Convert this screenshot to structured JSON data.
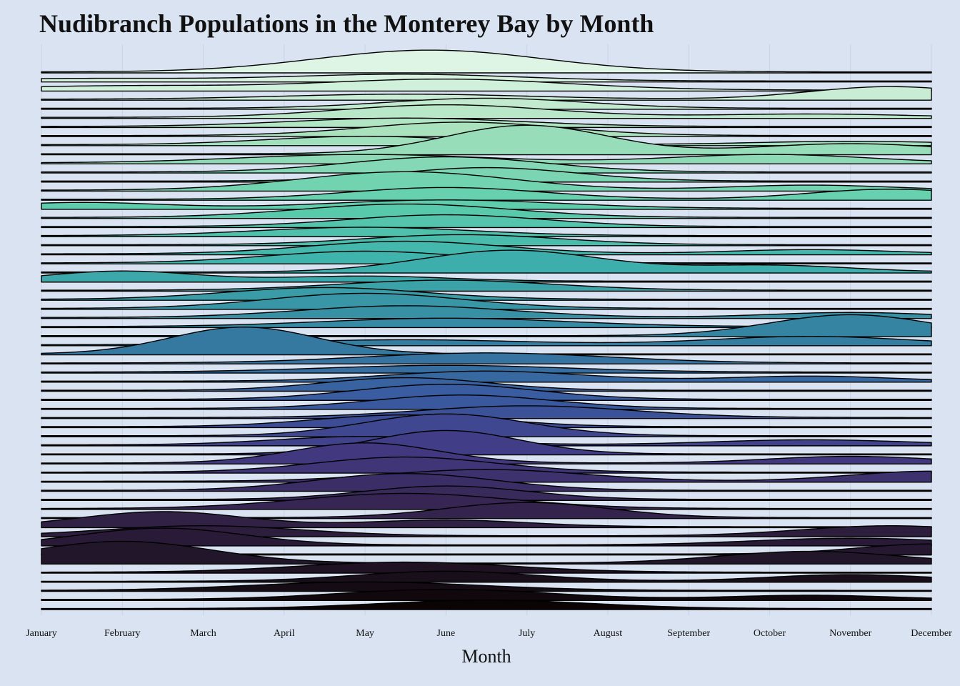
{
  "chart_data": {
    "type": "ridgeline",
    "title": "Nudibranch Populations in the Monterey Bay by Month",
    "xlabel": "Month",
    "ylabel": "",
    "x_ticks": [
      "January",
      "February",
      "March",
      "April",
      "May",
      "June",
      "July",
      "August",
      "September",
      "October",
      "November",
      "December"
    ],
    "xlim": [
      1,
      12
    ],
    "grid": true,
    "legend": "none",
    "palette": "mako",
    "series_count": 60,
    "series": [
      {
        "peaks": [
          [
            5.8,
            2.6,
            1.4
          ]
        ]
      },
      {
        "peaks": [
          [
            1.5,
            0.3,
            1.5
          ],
          [
            5.5,
            0.8,
            1.4
          ]
        ]
      },
      {
        "peaks": [
          [
            2.0,
            0.5,
            1.5
          ],
          [
            6.0,
            1.3,
            1.5
          ]
        ]
      },
      {
        "peaks": [
          [
            5.5,
            0.6,
            1.5
          ],
          [
            11.5,
            1.5,
            1.0
          ]
        ]
      },
      {
        "peaks": [
          [
            6.5,
            1.2,
            1.2
          ]
        ]
      },
      {
        "peaks": [
          [
            6.0,
            1.5,
            1.3
          ],
          [
            10.5,
            0.4,
            1.2
          ]
        ]
      },
      {
        "peaks": [
          [
            5.5,
            1.0,
            1.4
          ]
        ]
      },
      {
        "peaks": [
          [
            6.2,
            1.6,
            1.2
          ]
        ]
      },
      {
        "peaks": [
          [
            5.0,
            1.0,
            1.2
          ],
          [
            11.0,
            0.4,
            1.2
          ]
        ]
      },
      {
        "peaks": [
          [
            7.0,
            3.4,
            1.0
          ],
          [
            11.0,
            1.2,
            1.2
          ]
        ]
      },
      {
        "peaks": [
          [
            5.0,
            1.0,
            1.5
          ],
          [
            10.0,
            1.0,
            1.2
          ]
        ]
      },
      {
        "peaks": [
          [
            6.0,
            1.8,
            1.2
          ]
        ]
      },
      {
        "peaks": [
          [
            6.5,
            1.6,
            1.1
          ]
        ]
      },
      {
        "peaks": [
          [
            5.5,
            2.2,
            1.3
          ],
          [
            10.5,
            0.6,
            1.0
          ]
        ]
      },
      {
        "peaks": [
          [
            6.0,
            1.4,
            1.2
          ],
          [
            11.5,
            1.2,
            1.0
          ]
        ]
      },
      {
        "peaks": [
          [
            1.5,
            0.7,
            1.0
          ],
          [
            6.0,
            1.0,
            1.4
          ]
        ]
      },
      {
        "peaks": [
          [
            5.5,
            1.6,
            1.3
          ]
        ]
      },
      {
        "peaks": [
          [
            6.0,
            1.4,
            1.2
          ]
        ]
      },
      {
        "peaks": [
          [
            5.0,
            1.0,
            1.3
          ]
        ]
      },
      {
        "peaks": [
          [
            6.2,
            1.2,
            1.2
          ]
        ]
      },
      {
        "peaks": [
          [
            5.5,
            1.5,
            1.2
          ],
          [
            10.5,
            0.5,
            1.0
          ]
        ]
      },
      {
        "peaks": [
          [
            5.0,
            1.4,
            1.2
          ]
        ]
      },
      {
        "peaks": [
          [
            6.8,
            2.6,
            1.1
          ],
          [
            10.0,
            0.8,
            1.0
          ]
        ]
      },
      {
        "peaks": [
          [
            2.0,
            1.2,
            0.9
          ],
          [
            5.0,
            0.6,
            1.0
          ]
        ]
      },
      {
        "peaks": [
          [
            6.0,
            1.2,
            1.3
          ]
        ]
      },
      {
        "peaks": [
          [
            4.5,
            1.4,
            1.2
          ]
        ]
      },
      {
        "peaks": [
          [
            5.0,
            1.8,
            1.2
          ]
        ]
      },
      {
        "peaks": [
          [
            5.5,
            1.4,
            1.3
          ],
          [
            11.0,
            0.6,
            1.0
          ]
        ]
      },
      {
        "peaks": [
          [
            6.0,
            1.0,
            1.5
          ]
        ]
      },
      {
        "peaks": [
          [
            11.0,
            2.5,
            1.0
          ]
        ]
      },
      {
        "peaks": [
          [
            5.5,
            0.6,
            1.5
          ],
          [
            10.5,
            1.0,
            1.2
          ]
        ]
      },
      {
        "peaks": [
          [
            3.5,
            3.2,
            0.9
          ]
        ]
      },
      {
        "peaks": [
          [
            6.5,
            1.2,
            1.5
          ]
        ]
      },
      {
        "peaks": [
          [
            6.0,
            0.8,
            1.5
          ]
        ]
      },
      {
        "peaks": [
          [
            6.5,
            1.2,
            1.2
          ],
          [
            10.5,
            0.6,
            1.0
          ]
        ]
      },
      {
        "peaks": [
          [
            5.5,
            1.5,
            1.0
          ]
        ]
      },
      {
        "peaks": [
          [
            6.0,
            1.8,
            1.1
          ]
        ]
      },
      {
        "peaks": [
          [
            6.2,
            1.6,
            1.1
          ]
        ]
      },
      {
        "peaks": [
          [
            7.0,
            1.4,
            1.3
          ]
        ]
      },
      {
        "peaks": [
          [
            5.5,
            1.4,
            1.1
          ]
        ]
      },
      {
        "peaks": [
          [
            6.0,
            2.6,
            1.0
          ]
        ]
      },
      {
        "peaks": [
          [
            5.0,
            1.0,
            1.1
          ],
          [
            10.5,
            0.6,
            1.2
          ]
        ]
      },
      {
        "peaks": [
          [
            6.0,
            2.8,
            0.9
          ]
        ]
      },
      {
        "peaks": [
          [
            5.0,
            2.4,
            0.9
          ],
          [
            11.0,
            0.8,
            1.0
          ]
        ]
      },
      {
        "peaks": [
          [
            5.5,
            1.8,
            1.1
          ]
        ]
      },
      {
        "peaks": [
          [
            6.5,
            1.4,
            1.2
          ],
          [
            12.0,
            1.2,
            1.0
          ]
        ]
      },
      {
        "peaks": [
          [
            5.5,
            2.0,
            1.1
          ]
        ]
      },
      {
        "peaks": [
          [
            6.0,
            1.6,
            1.0
          ]
        ]
      },
      {
        "peaks": [
          [
            5.5,
            1.8,
            1.3
          ]
        ]
      },
      {
        "peaks": [
          [
            7.0,
            1.8,
            1.0
          ]
        ]
      },
      {
        "peaks": [
          [
            2.5,
            1.8,
            1.0
          ],
          [
            6.0,
            0.8,
            1.0
          ]
        ]
      },
      {
        "peaks": [
          [
            3.0,
            1.2,
            1.2
          ],
          [
            11.5,
            1.2,
            1.1
          ]
        ]
      },
      {
        "peaks": [
          [
            2.5,
            2.0,
            1.0
          ],
          [
            11.0,
            0.8,
            1.2
          ]
        ]
      },
      {
        "peaks": [
          [
            12.0,
            1.2,
            0.9
          ]
        ]
      },
      {
        "peaks": [
          [
            2.0,
            2.6,
            1.1
          ],
          [
            10.5,
            1.4,
            1.1
          ]
        ]
      },
      {
        "peaks": [
          [
            5.5,
            1.2,
            1.3
          ]
        ]
      },
      {
        "peaks": [
          [
            6.0,
            1.2,
            1.1
          ],
          [
            11.0,
            0.8,
            1.0
          ]
        ]
      },
      {
        "peaks": [
          [
            5.0,
            1.0,
            1.4
          ]
        ]
      },
      {
        "peaks": [
          [
            6.0,
            1.2,
            1.3
          ],
          [
            10.5,
            0.5,
            1.0
          ]
        ]
      },
      {
        "peaks": [
          [
            6.5,
            1.0,
            1.3
          ]
        ]
      }
    ]
  }
}
